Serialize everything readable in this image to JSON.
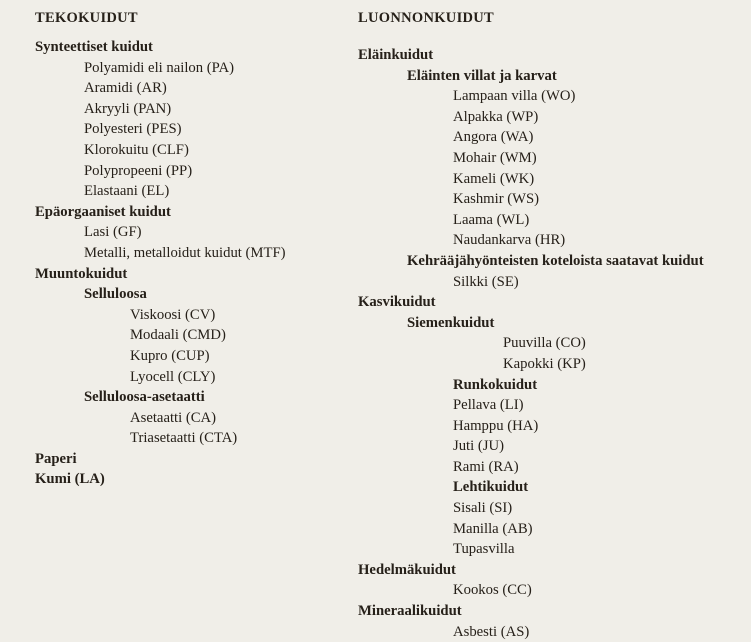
{
  "colors": {
    "background": "#f0eee8",
    "text": "#262019"
  },
  "columns": [
    {
      "id": "tekokuidut",
      "title": "TEKOKUIDUT",
      "items": [
        {
          "text": "Synteettiset kuidut",
          "indent": 0,
          "bold": true
        },
        {
          "text": "Polyamidi eli nailon (PA)",
          "indent": 1,
          "bold": false
        },
        {
          "text": "Aramidi (AR)",
          "indent": 1,
          "bold": false
        },
        {
          "text": "Akryyli (PAN)",
          "indent": 1,
          "bold": false
        },
        {
          "text": "Polyesteri (PES)",
          "indent": 1,
          "bold": false
        },
        {
          "text": "Klorokuitu (CLF)",
          "indent": 1,
          "bold": false
        },
        {
          "text": "Polypropeeni (PP)",
          "indent": 1,
          "bold": false
        },
        {
          "text": "Elastaani (EL)",
          "indent": 1,
          "bold": false
        },
        {
          "text": "Epäorgaaniset kuidut",
          "indent": 0,
          "bold": true
        },
        {
          "text": "Lasi (GF)",
          "indent": 1,
          "bold": false
        },
        {
          "text": "Metalli, metalloidut kuidut (MTF)",
          "indent": 1,
          "bold": false
        },
        {
          "text": "Muuntokuidut",
          "indent": 0,
          "bold": true
        },
        {
          "text": "Selluloosa",
          "indent": 1,
          "bold": true
        },
        {
          "text": "Viskoosi (CV)",
          "indent": 2,
          "bold": false
        },
        {
          "text": "Modaali (CMD)",
          "indent": 2,
          "bold": false
        },
        {
          "text": "Kupro (CUP)",
          "indent": 2,
          "bold": false
        },
        {
          "text": "Lyocell (CLY)",
          "indent": 2,
          "bold": false
        },
        {
          "text": "Selluloosa-asetaatti",
          "indent": 1,
          "bold": true
        },
        {
          "text": "Asetaatti (CA)",
          "indent": 2,
          "bold": false
        },
        {
          "text": "Triasetaatti (CTA)",
          "indent": 2,
          "bold": false
        },
        {
          "text": "Paperi",
          "indent": 0,
          "bold": true
        },
        {
          "text": "Kumi (LA)",
          "indent": 0,
          "bold": true
        }
      ]
    },
    {
      "id": "luonnonkuidut",
      "title": "LUONNONKUIDUT",
      "items": [
        {
          "text": "Eläinkuidut",
          "indent": 0,
          "bold": true
        },
        {
          "text": "Eläinten villat ja karvat",
          "indent": 1,
          "bold": true
        },
        {
          "text": "Lampaan villa (WO)",
          "indent": 2,
          "bold": false
        },
        {
          "text": "Alpakka (WP)",
          "indent": 2,
          "bold": false
        },
        {
          "text": "Angora (WA)",
          "indent": 2,
          "bold": false
        },
        {
          "text": "Mohair (WM)",
          "indent": 2,
          "bold": false
        },
        {
          "text": "Kameli (WK)",
          "indent": 2,
          "bold": false
        },
        {
          "text": "Kashmir (WS)",
          "indent": 2,
          "bold": false
        },
        {
          "text": "Laama (WL)",
          "indent": 2,
          "bold": false
        },
        {
          "text": "Naudankarva (HR)",
          "indent": 2,
          "bold": false
        },
        {
          "text": "Kehrääjähyönteisten koteloista saatavat kuidut",
          "indent": 1,
          "bold": true
        },
        {
          "text": "Silkki (SE)",
          "indent": 2,
          "bold": false
        },
        {
          "text": "Kasvikuidut",
          "indent": 0,
          "bold": true
        },
        {
          "text": "Siemenkuidut",
          "indent": 1,
          "bold": true
        },
        {
          "text": "Puuvilla (CO)",
          "indent": 3,
          "bold": false
        },
        {
          "text": "Kapokki (KP)",
          "indent": 3,
          "bold": false
        },
        {
          "text": "Runkokuidut",
          "indent": 2,
          "bold": true
        },
        {
          "text": "Pellava (LI)",
          "indent": 2,
          "bold": false
        },
        {
          "text": "Hamppu (HA)",
          "indent": 2,
          "bold": false
        },
        {
          "text": "Juti (JU)",
          "indent": 2,
          "bold": false
        },
        {
          "text": "Rami (RA)",
          "indent": 2,
          "bold": false
        },
        {
          "text": "Lehtikuidut",
          "indent": 2,
          "bold": true
        },
        {
          "text": "Sisali (SI)",
          "indent": 2,
          "bold": false
        },
        {
          "text": "Manilla (AB)",
          "indent": 2,
          "bold": false
        },
        {
          "text": "Tupasvilla",
          "indent": 2,
          "bold": false
        },
        {
          "text": "Hedelmäkuidut",
          "indent": 0,
          "bold": true
        },
        {
          "text": "Kookos (CC)",
          "indent": 2,
          "bold": false
        },
        {
          "text": "Mineraalikuidut",
          "indent": 0,
          "bold": true
        },
        {
          "text": "Asbesti (AS)",
          "indent": 2,
          "bold": false
        }
      ]
    }
  ]
}
